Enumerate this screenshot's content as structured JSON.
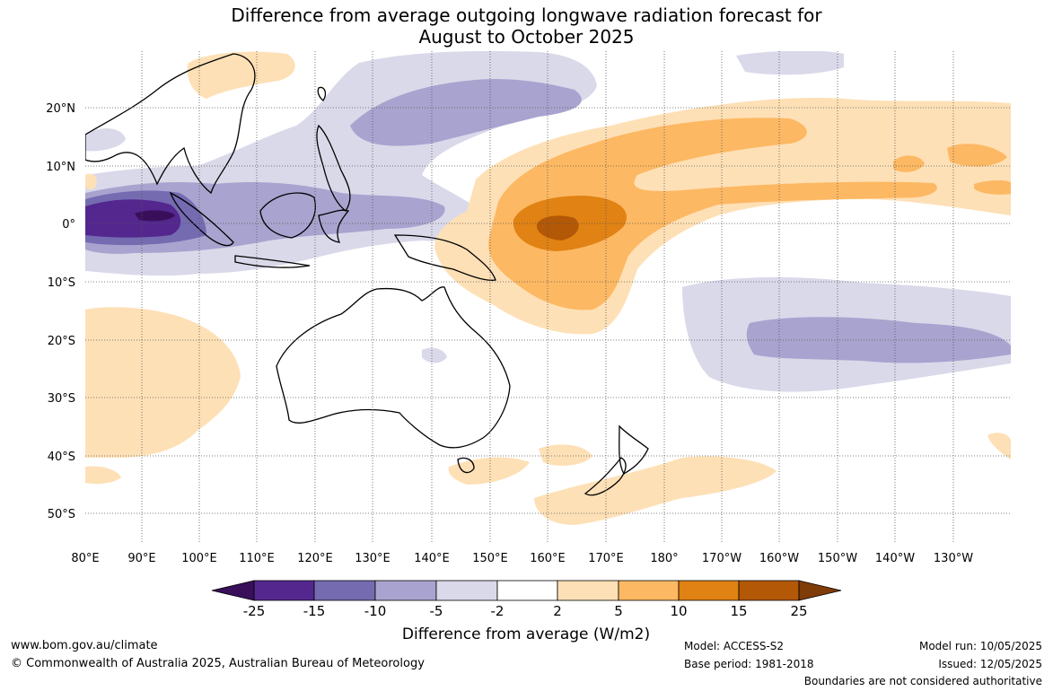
{
  "title_line1": "Difference from average outgoing longwave radiation forecast for",
  "title_line2": "August to October 2025",
  "lat_labels": [
    "20°N",
    "10°N",
    "0°",
    "10°S",
    "20°S",
    "30°S",
    "40°S",
    "50°S"
  ],
  "lon_labels": [
    "80°E",
    "90°E",
    "100°E",
    "110°E",
    "120°E",
    "130°E",
    "140°E",
    "150°E",
    "160°E",
    "170°E",
    "180°",
    "170°W",
    "160°W",
    "150°W",
    "140°W",
    "130°W"
  ],
  "colorbar": {
    "ticks": [
      "-25",
      "-15",
      "-10",
      "-5",
      "-2",
      "2",
      "5",
      "10",
      "15",
      "25"
    ],
    "colors": [
      "#3a0f5a",
      "#54278f",
      "#756bb1",
      "#a9a3cf",
      "#d9d9ea",
      "#ffffff",
      "#fee0b6",
      "#fdb863",
      "#e08214",
      "#b35806",
      "#7f3b08"
    ],
    "label": "Difference from average (W/m2)"
  },
  "footer": {
    "url": "www.bom.gov.au/climate",
    "copyright": "© Commonwealth of Australia 2025, Australian Bureau of Meteorology",
    "model": "Model: ACCESS-S2",
    "base_period": "Base period: 1981-2018",
    "model_run": "Model run: 10/05/2025",
    "issued": "Issued: 12/05/2025",
    "disclaimer": "Boundaries are not considered authoritative"
  }
}
